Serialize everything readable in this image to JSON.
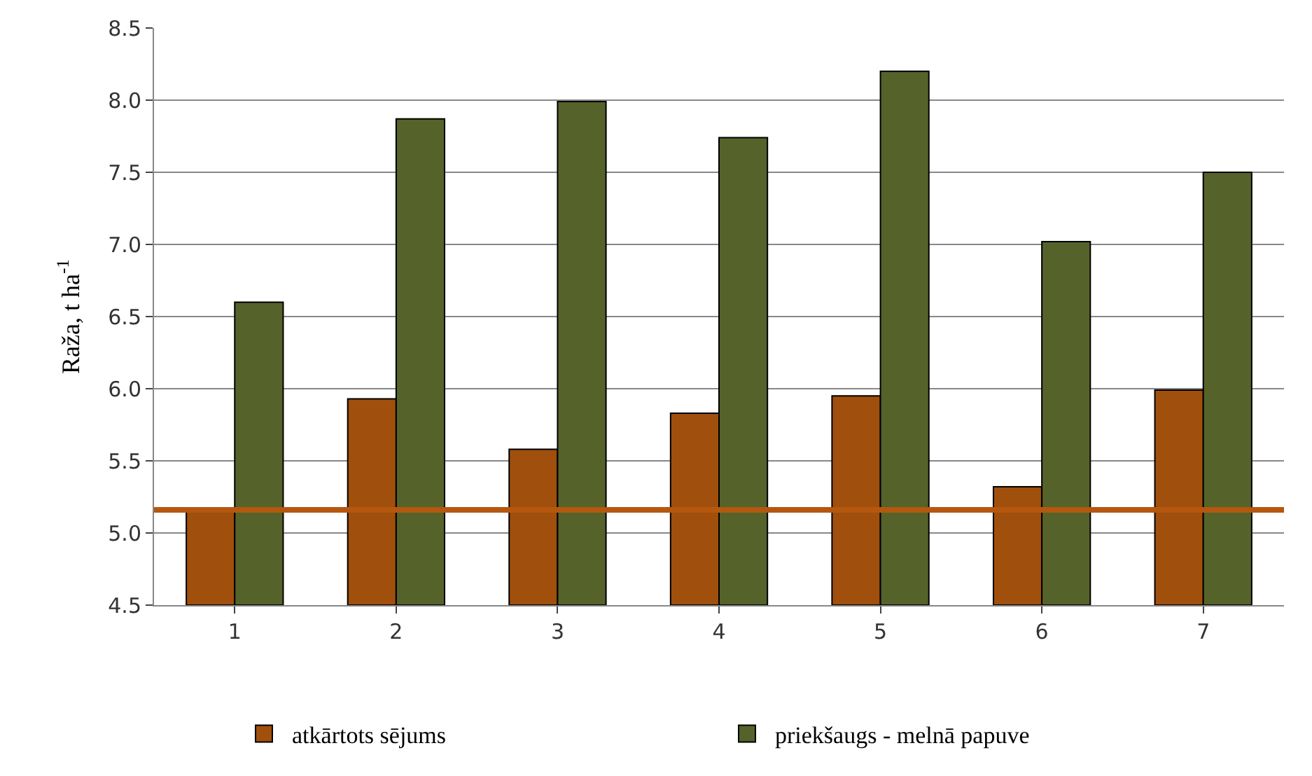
{
  "chart_data": {
    "type": "bar",
    "ylabel": "Raža, t ha$^{-1}$",
    "categories": [
      "1",
      "2",
      "3",
      "4",
      "5",
      "6",
      "7"
    ],
    "series": [
      {
        "name": "atkārtots sējums",
        "color": "#a04f0c",
        "values": [
          5.15,
          5.93,
          5.58,
          5.83,
          5.95,
          5.32,
          5.99
        ]
      },
      {
        "name": "priekšaugs - melnā papuve",
        "color": "#55622a",
        "values": [
          6.6,
          7.87,
          7.99,
          7.74,
          8.2,
          7.02,
          7.5
        ]
      }
    ],
    "ylim": [
      4.5,
      8.5
    ],
    "yticks": [
      4.5,
      {
        "value": 5,
        "label": "5.0"
      },
      5.5,
      {
        "value": 6,
        "label": "6.0"
      },
      6.5,
      {
        "value": 7,
        "label": "7.0"
      },
      7.5,
      {
        "value": 8,
        "label": "8.0"
      },
      8.5
    ],
    "ref_lines": [
      {
        "axis": "y",
        "value": 5.16,
        "color": "#b5570e"
      }
    ],
    "grid": "y",
    "legend": "bottom"
  }
}
